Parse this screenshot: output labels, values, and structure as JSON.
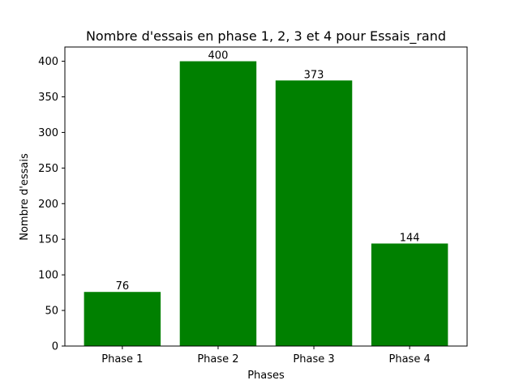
{
  "chart_data": {
    "type": "bar",
    "title": "Nombre d'essais en phase 1, 2, 3 et 4 pour Essais_rand",
    "xlabel": "Phases",
    "ylabel": "Nombre d'essais",
    "categories": [
      "Phase 1",
      "Phase 2",
      "Phase 3",
      "Phase 4"
    ],
    "values": [
      76,
      400,
      373,
      144
    ],
    "ylim": [
      0,
      420
    ],
    "yticks": [
      0,
      50,
      100,
      150,
      200,
      250,
      300,
      350,
      400
    ],
    "bar_color": "#008000",
    "grid": false
  }
}
